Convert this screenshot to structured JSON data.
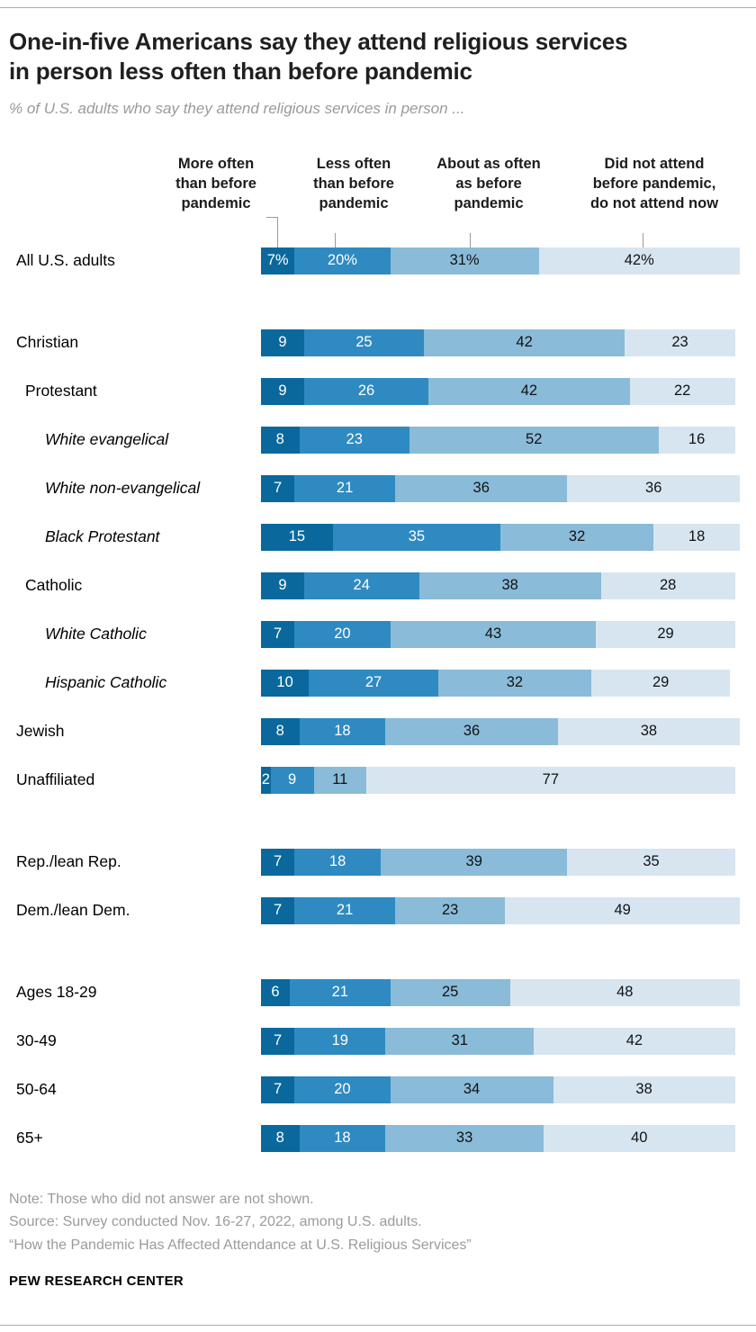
{
  "title": "One-in-five Americans say they attend religious services in person less often than before pandemic",
  "subtitle": "% of U.S. adults who say they attend religious services in person ...",
  "column_headers": [
    "More often\nthan before\npandemic",
    "Less often\nthan before\npandemic",
    "About as often\nas before\npandemic",
    "Did not attend\nbefore pandemic,\ndo not attend now"
  ],
  "chart_data": {
    "type": "bar",
    "stacked": true,
    "orientation": "horizontal",
    "unit": "percent",
    "xlim": [
      0,
      100
    ],
    "series": [
      "More often than before pandemic",
      "Less often than before pandemic",
      "About as often as before pandemic",
      "Did not attend before pandemic, do not attend now"
    ],
    "colors": [
      "#0a689c",
      "#2f8ac1",
      "#8abbd9",
      "#d7e5f0"
    ],
    "groups": [
      {
        "rows": [
          {
            "label": "All U.S. adults",
            "indent": 0,
            "italic": false,
            "values": [
              7,
              20,
              31,
              42
            ],
            "labels": [
              "7%",
              "20%",
              "31%",
              "42%"
            ]
          }
        ]
      },
      {
        "rows": [
          {
            "label": "Christian",
            "indent": 0,
            "italic": false,
            "values": [
              9,
              25,
              42,
              23
            ]
          },
          {
            "label": "Protestant",
            "indent": 1,
            "italic": false,
            "values": [
              9,
              26,
              42,
              22
            ]
          },
          {
            "label": "White evangelical",
            "indent": 2,
            "italic": true,
            "values": [
              8,
              23,
              52,
              16
            ]
          },
          {
            "label": "White non-evangelical",
            "indent": 2,
            "italic": true,
            "values": [
              7,
              21,
              36,
              36
            ]
          },
          {
            "label": "Black Protestant",
            "indent": 2,
            "italic": true,
            "values": [
              15,
              35,
              32,
              18
            ]
          },
          {
            "label": "Catholic",
            "indent": 1,
            "italic": false,
            "values": [
              9,
              24,
              38,
              28
            ]
          },
          {
            "label": "White Catholic",
            "indent": 2,
            "italic": true,
            "values": [
              7,
              20,
              43,
              29
            ]
          },
          {
            "label": "Hispanic Catholic",
            "indent": 2,
            "italic": true,
            "values": [
              10,
              27,
              32,
              29
            ]
          },
          {
            "label": "Jewish",
            "indent": 0,
            "italic": false,
            "values": [
              8,
              18,
              36,
              38
            ]
          },
          {
            "label": "Unaffiliated",
            "indent": 0,
            "italic": false,
            "values": [
              2,
              9,
              11,
              77
            ]
          }
        ]
      },
      {
        "rows": [
          {
            "label": "Rep./lean Rep.",
            "indent": 0,
            "italic": false,
            "values": [
              7,
              18,
              39,
              35
            ]
          },
          {
            "label": "Dem./lean Dem.",
            "indent": 0,
            "italic": false,
            "values": [
              7,
              21,
              23,
              49
            ]
          }
        ]
      },
      {
        "rows": [
          {
            "label": "Ages 18-29",
            "indent": 0,
            "italic": false,
            "values": [
              6,
              21,
              25,
              48
            ]
          },
          {
            "label": "30-49",
            "indent": 0,
            "italic": false,
            "values": [
              7,
              19,
              31,
              42
            ]
          },
          {
            "label": "50-64",
            "indent": 0,
            "italic": false,
            "values": [
              7,
              20,
              34,
              38
            ]
          },
          {
            "label": "65+",
            "indent": 0,
            "italic": false,
            "values": [
              8,
              18,
              33,
              40
            ]
          }
        ]
      }
    ]
  },
  "notes": {
    "note": "Note: Those who did not answer are not shown.",
    "source": "Source: Survey conducted Nov. 16-27, 2022, among U.S. adults.",
    "report": "“How the Pandemic Has Affected Attendance at U.S. Religious Services”"
  },
  "footer": "PEW RESEARCH CENTER"
}
